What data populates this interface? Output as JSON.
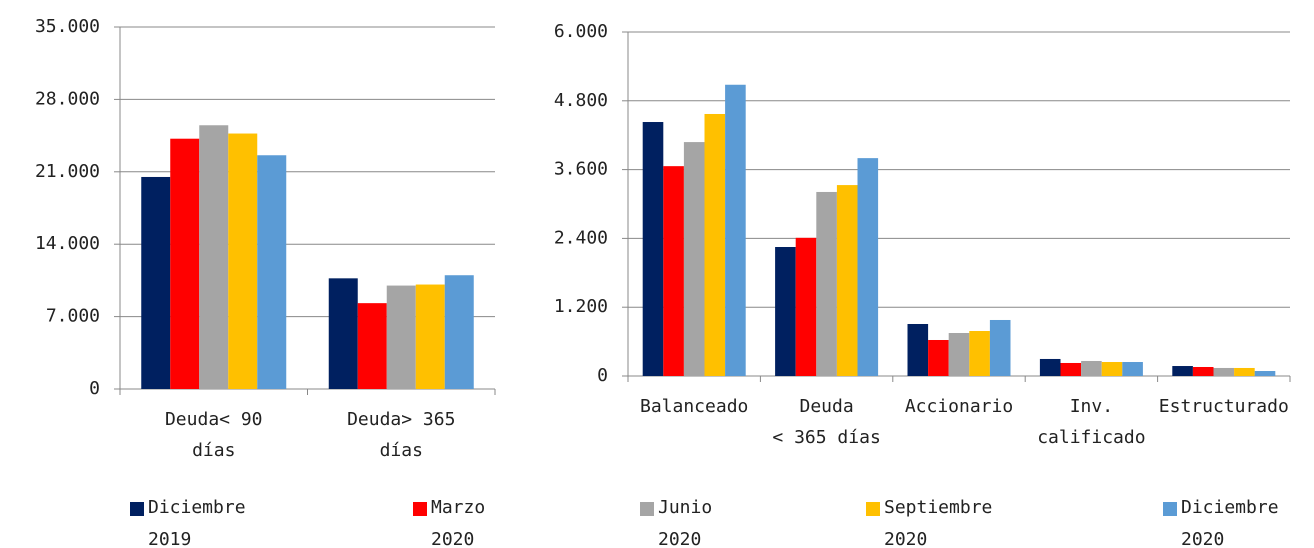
{
  "chart_data": [
    {
      "type": "bar",
      "categories": [
        "Deuda< 90\ndías",
        "Deuda> 365\ndías"
      ],
      "ylim": [
        0,
        35000
      ],
      "yticks": [
        0,
        {
          "value": 7000,
          "label": "7.000"
        },
        {
          "value": 14000,
          "label": "14.000"
        },
        {
          "value": 21000,
          "label": "21.000"
        },
        {
          "value": 28000,
          "label": "28.000"
        },
        {
          "value": 35000,
          "label": "35.000"
        }
      ],
      "grid": true,
      "legend": "bottom",
      "series": [
        {
          "name": "Diciembre\n2019",
          "color": "#002060",
          "values": [
            20500,
            10700
          ]
        },
        {
          "name": "Marzo\n2020",
          "color": "#ff0000",
          "values": [
            24200,
            8300
          ]
        },
        {
          "name": "Junio\n2020",
          "color": "#a5a5a5",
          "values": [
            25500,
            10000
          ]
        },
        {
          "name": "Septiembre\n2020",
          "color": "#ffc000",
          "values": [
            24700,
            10100
          ]
        },
        {
          "name": "Diciembre\n2020",
          "color": "#5b9bd5",
          "values": [
            22600,
            11000
          ]
        }
      ]
    },
    {
      "type": "bar",
      "categories": [
        "Balanceado",
        "Deuda\n< 365 días",
        "Accionario",
        "Inv.\ncalificado",
        "Estructurado"
      ],
      "ylim": [
        0,
        6000
      ],
      "yticks": [
        0,
        {
          "value": 1200,
          "label": "1.200"
        },
        {
          "value": 2400,
          "label": "2.400"
        },
        {
          "value": 3600,
          "label": "3.600"
        },
        {
          "value": 4800,
          "label": "4.800"
        },
        {
          "value": 6000,
          "label": "6.000"
        }
      ],
      "grid": true,
      "series": [
        {
          "color": "#002060",
          "values": [
            4430,
            2250,
            907,
            297,
            174
          ]
        },
        {
          "color": "#ff0000",
          "values": [
            3660,
            2410,
            628,
            227,
            157
          ]
        },
        {
          "color": "#a5a5a5",
          "values": [
            4080,
            3210,
            750,
            262,
            140
          ]
        },
        {
          "color": "#ffc000",
          "values": [
            4570,
            3330,
            785,
            244,
            140
          ]
        },
        {
          "color": "#5b9bd5",
          "values": [
            5080,
            3800,
            977,
            244,
            87
          ]
        }
      ]
    }
  ]
}
